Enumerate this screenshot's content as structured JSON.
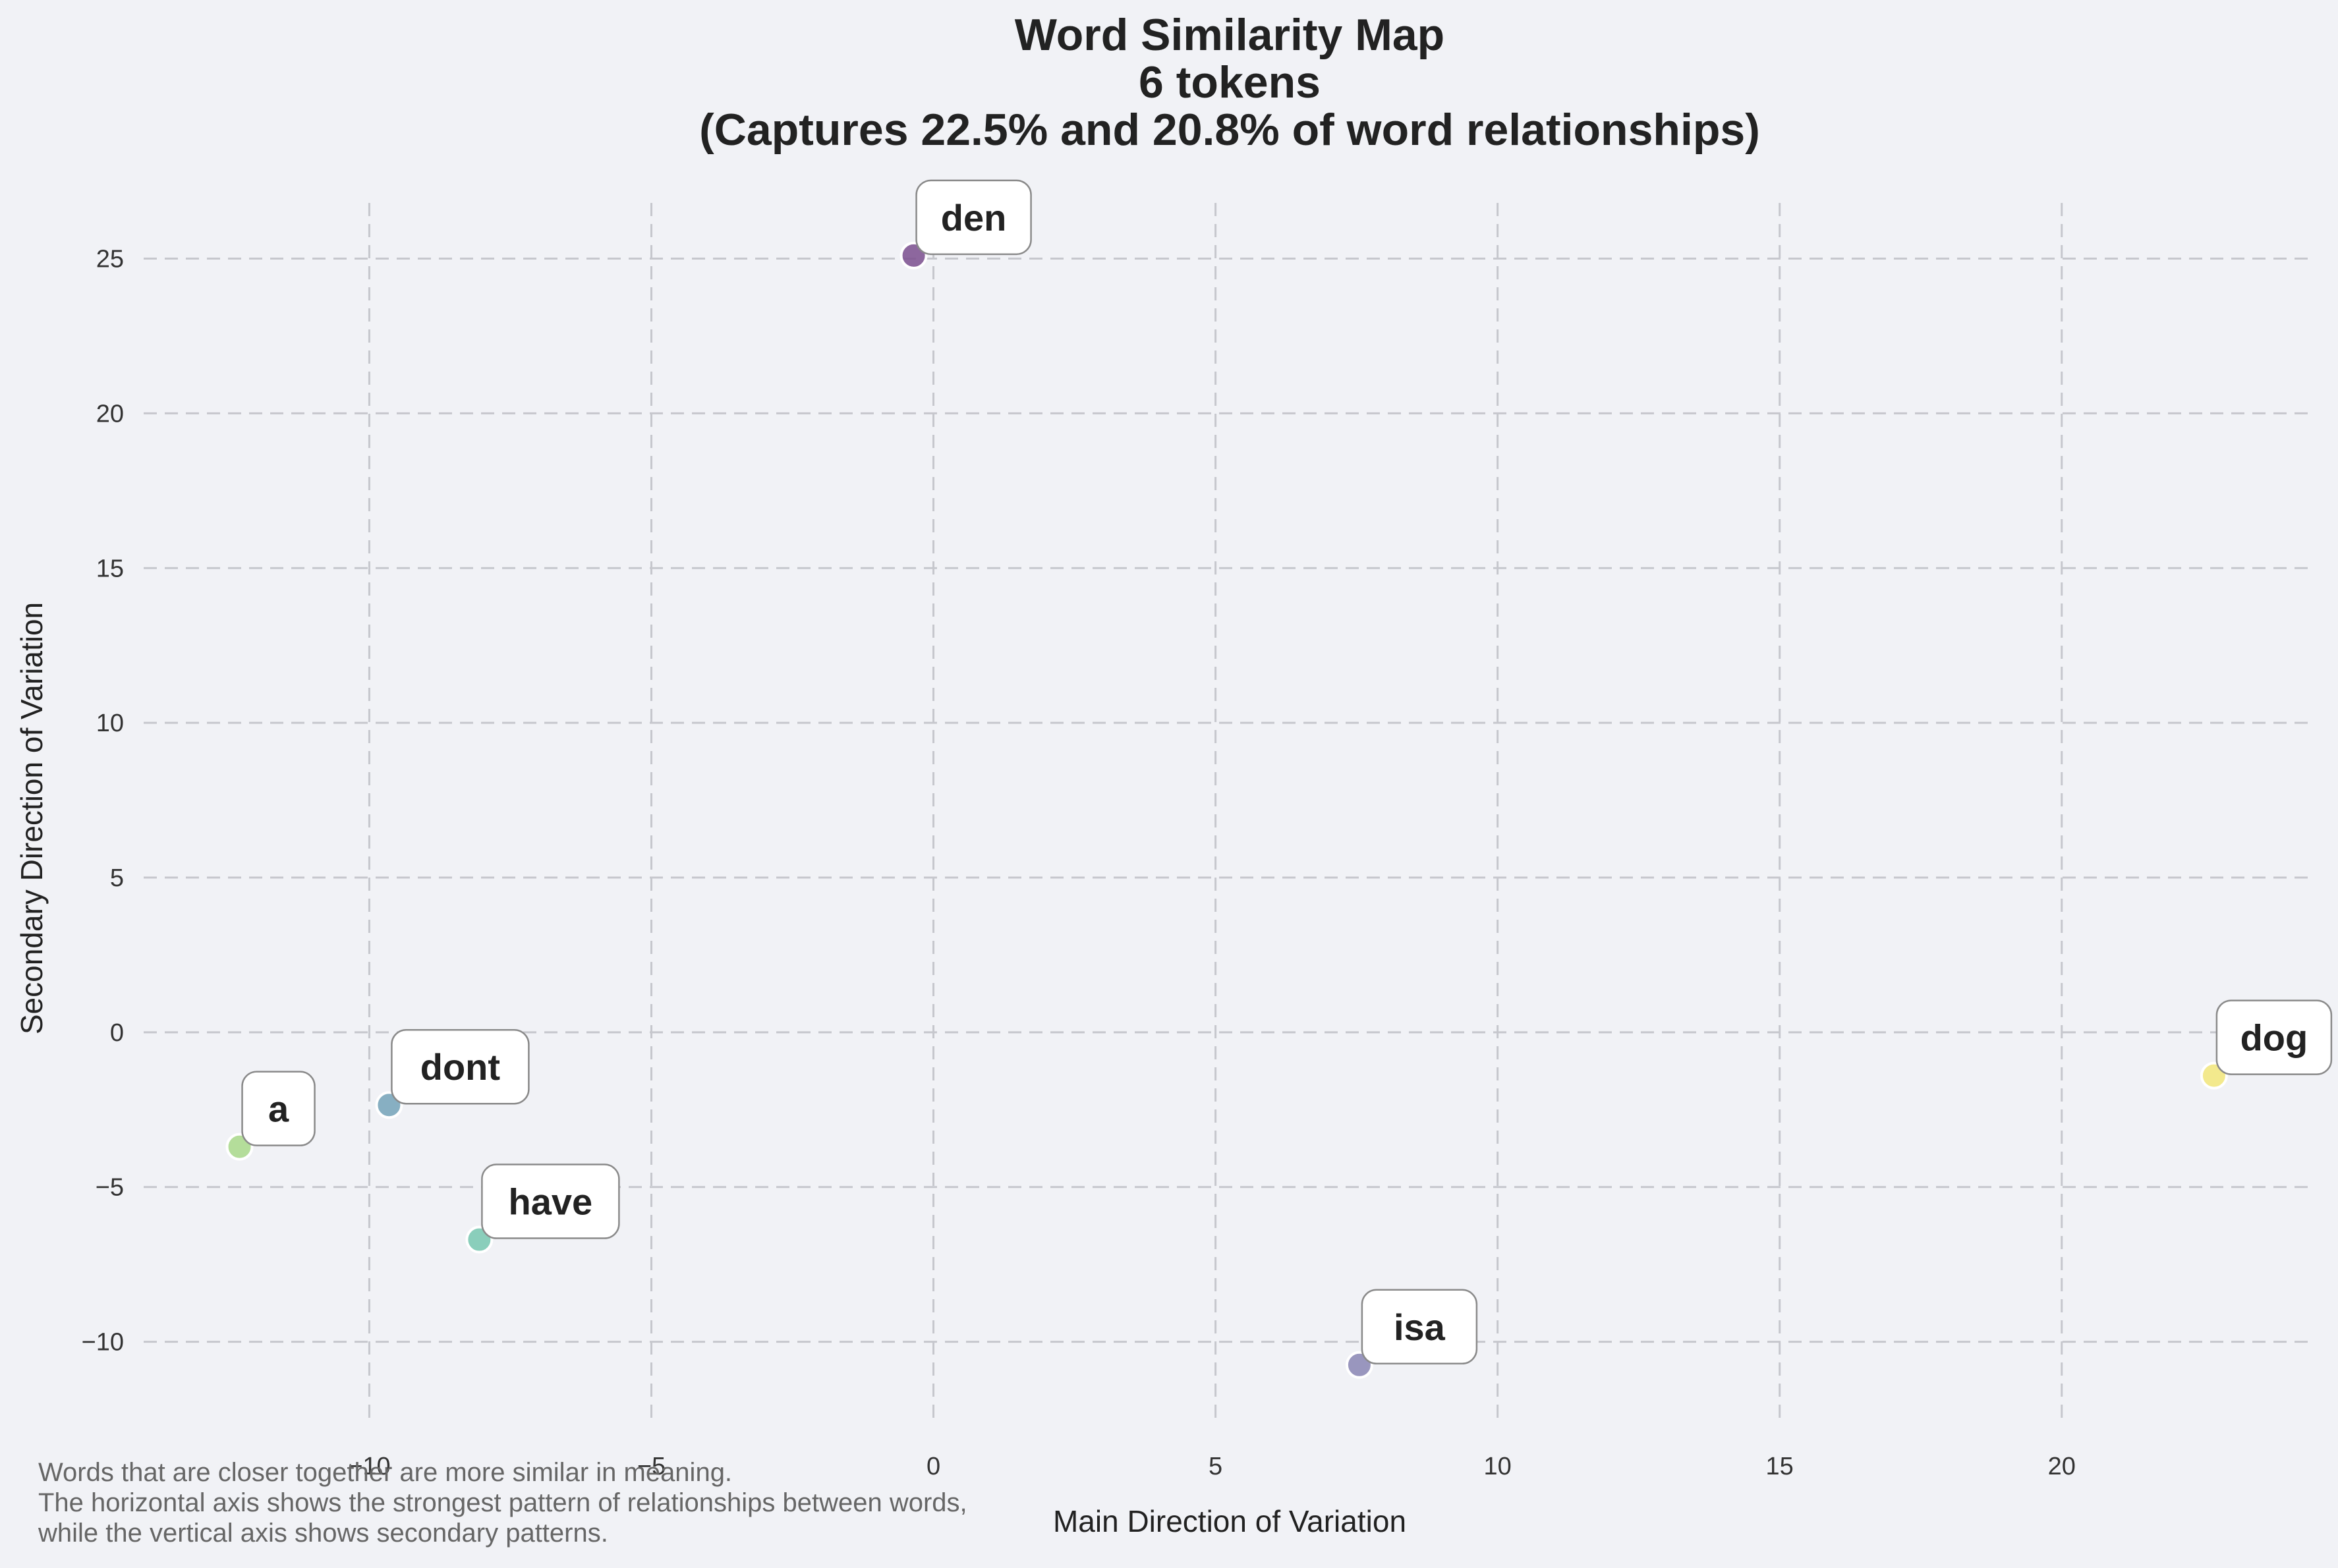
{
  "chart_data": {
    "type": "scatter",
    "title": [
      "Word Similarity Map",
      "6 tokens",
      "(Captures 22.5% and 20.8% of word relationships)"
    ],
    "xlabel": "Main Direction of Variation",
    "ylabel": "Secondary Direction of Variation",
    "xlim": [
      -14,
      24.5
    ],
    "ylim": [
      -12.5,
      26.8
    ],
    "xticks": [
      -10,
      -5,
      0,
      5,
      10,
      15,
      20
    ],
    "xtick_labels": [
      "−10",
      "−5",
      "0",
      "5",
      "10",
      "15",
      "20"
    ],
    "yticks": [
      -10,
      -5,
      0,
      5,
      10,
      15,
      20,
      25
    ],
    "ytick_labels": [
      "−10",
      "−5",
      "0",
      "5",
      "10",
      "15",
      "20",
      "25"
    ],
    "grid": true,
    "points": [
      {
        "label": "den",
        "x": -0.35,
        "y": 25.1,
        "color": "#7b4f8e"
      },
      {
        "label": "isa",
        "x": 7.55,
        "y": -10.75,
        "color": "#8a86b4"
      },
      {
        "label": "dont",
        "x": -9.65,
        "y": -2.35,
        "color": "#74a3b8"
      },
      {
        "label": "have",
        "x": -8.05,
        "y": -6.7,
        "color": "#78c8b0"
      },
      {
        "label": "a",
        "x": -12.3,
        "y": -3.7,
        "color": "#a9d98a"
      },
      {
        "label": "dog",
        "x": 22.7,
        "y": -1.4,
        "color": "#f3e77a"
      }
    ]
  },
  "footnote": [
    "Words that are closer together are more similar in meaning.",
    "The horizontal axis shows the strongest pattern of relationships between words,",
    "while the vertical axis shows secondary patterns."
  ]
}
